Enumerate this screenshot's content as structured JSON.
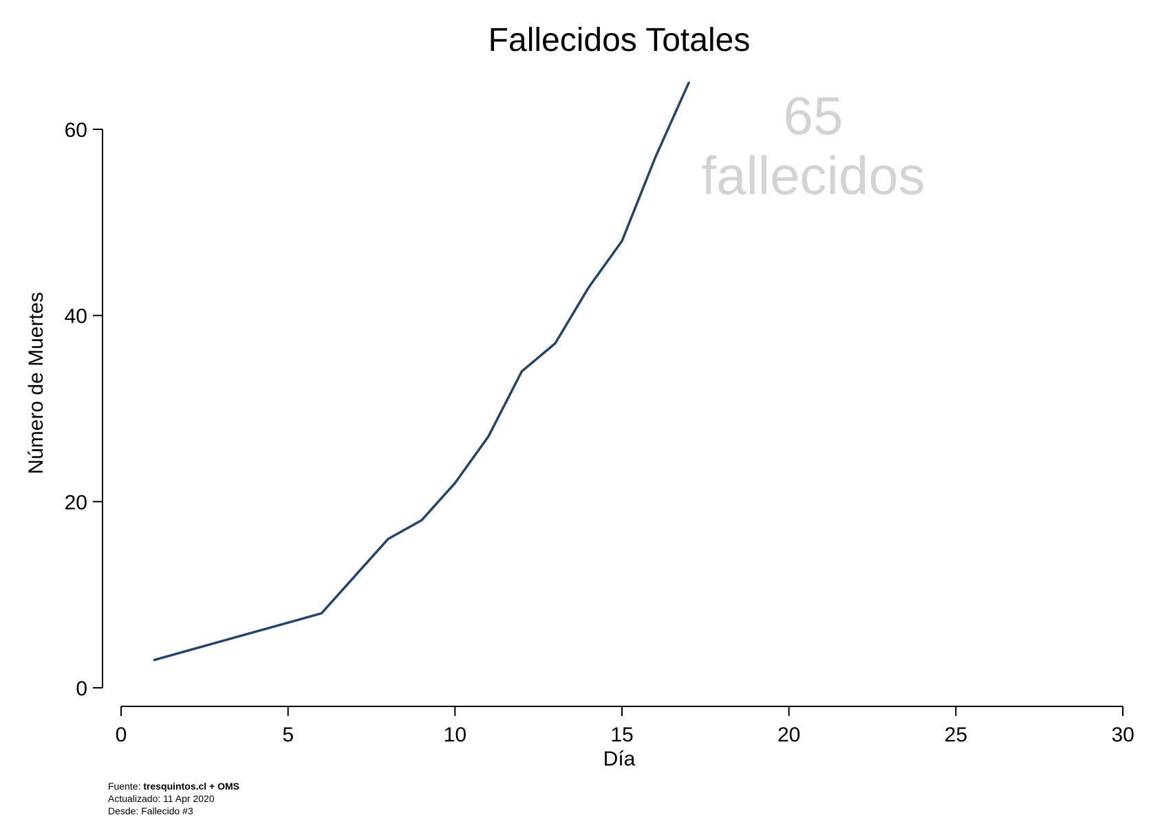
{
  "chart_data": {
    "type": "line",
    "title": "Fallecidos Totales",
    "xlabel": "Día",
    "ylabel": "Número de Muertes",
    "xlim": [
      0,
      30
    ],
    "ylim": [
      0,
      60
    ],
    "xticks": [
      0,
      5,
      10,
      15,
      20,
      25,
      30
    ],
    "yticks": [
      0,
      20,
      40,
      60
    ],
    "grid": false,
    "series": [
      {
        "x": [
          1,
          6,
          7,
          8,
          9,
          10,
          11,
          12,
          13,
          14,
          15,
          16,
          17
        ],
        "y": [
          3,
          8,
          12,
          16,
          18,
          22,
          27,
          34,
          37,
          43,
          48,
          57,
          65
        ],
        "color": "#24446a"
      }
    ],
    "annotation": {
      "line1": "65",
      "line2": "fallecidos",
      "color": "#d3d3d3"
    },
    "footer": {
      "source_prefix": "Fuente: ",
      "source_bold": "tresquintos.cl + OMS",
      "updated": "Actualizado: 11 Apr 2020",
      "since": "Desde: Fallecido #3"
    }
  }
}
